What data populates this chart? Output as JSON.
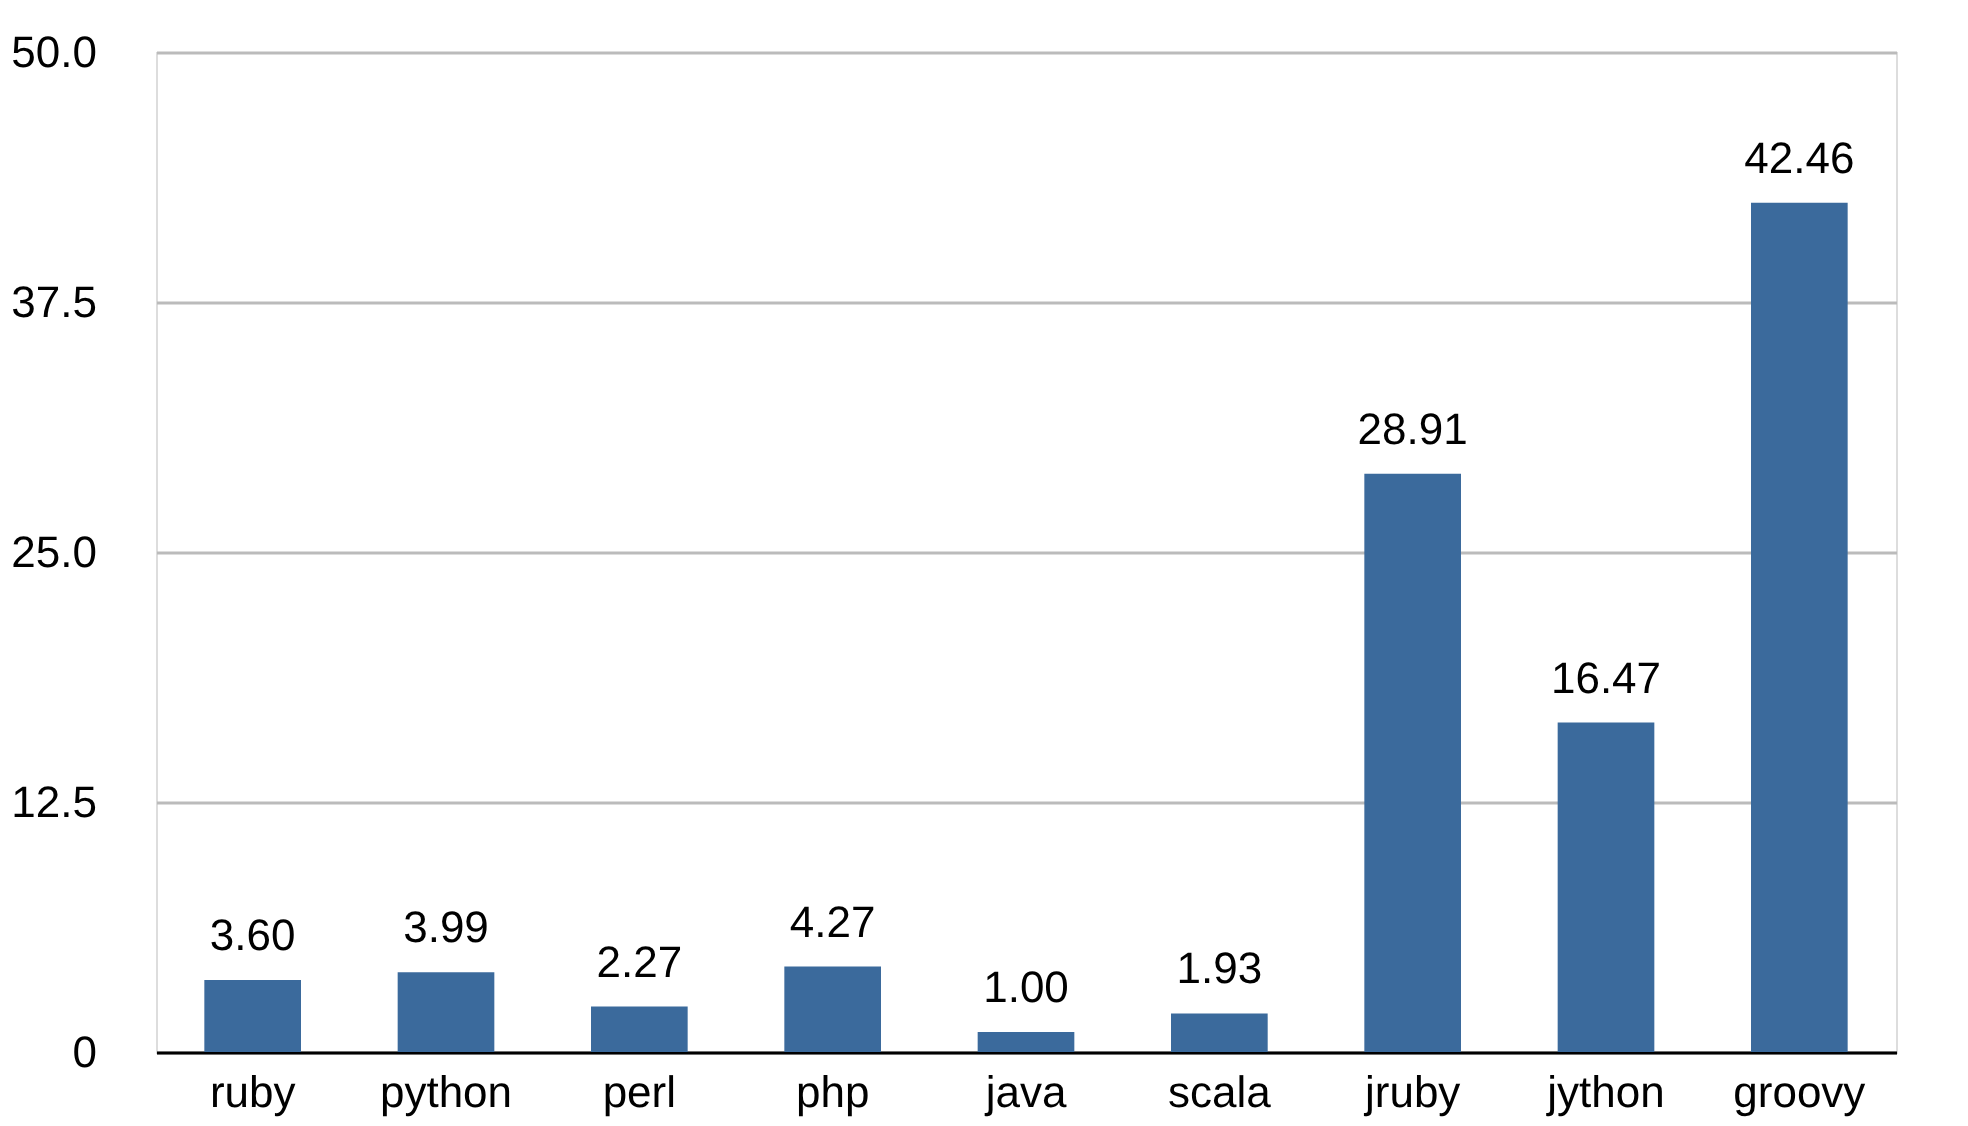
{
  "chart_data": {
    "type": "bar",
    "categories": [
      "ruby",
      "python",
      "perl",
      "php",
      "java",
      "scala",
      "jruby",
      "jython",
      "groovy"
    ],
    "values": [
      3.6,
      3.99,
      2.27,
      4.27,
      1.0,
      1.93,
      28.91,
      16.47,
      42.46
    ],
    "value_labels": [
      "3.60",
      "3.99",
      "2.27",
      "4.27",
      "1.00",
      "1.93",
      "28.91",
      "16.47",
      "42.46"
    ],
    "color": "#3b6a9c",
    "ylim": [
      0,
      50
    ],
    "yticks": [
      0,
      12.5,
      {
        "value": 25,
        "label": "25.0"
      },
      37.5,
      {
        "value": 50,
        "label": "50.0"
      }
    ],
    "grid": "y"
  }
}
